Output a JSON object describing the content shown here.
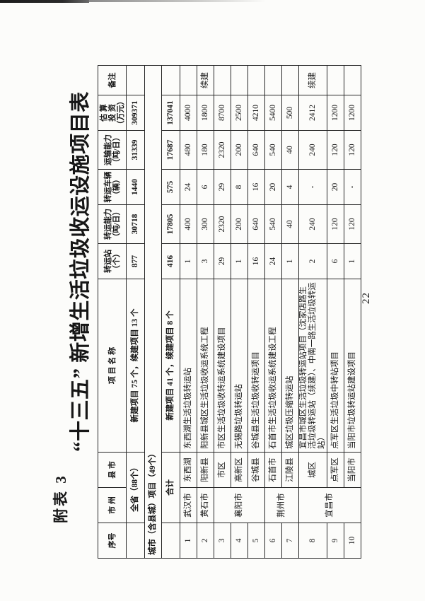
{
  "page": {
    "appendix_label": "附表 3",
    "title": "“十三五” 新增生活垃圾收运设施项目表",
    "page_number": "22"
  },
  "table": {
    "headers": [
      {
        "lines": [
          "序号"
        ]
      },
      {
        "lines": [
          "市 州"
        ]
      },
      {
        "lines": [
          "县 市"
        ]
      },
      {
        "lines": [
          "项 目 名 称"
        ]
      },
      {
        "lines": [
          "转运站",
          "（个）"
        ]
      },
      {
        "lines": [
          "转运能力",
          "（吨/日）"
        ]
      },
      {
        "lines": [
          "转运车辆",
          "（辆）"
        ]
      },
      {
        "lines": [
          "运输能力",
          "（吨/日）"
        ]
      },
      {
        "lines": [
          "估 算",
          "投 资",
          "（万元）"
        ]
      },
      {
        "lines": [
          "备注"
        ]
      }
    ],
    "rows": [
      {
        "cells": [
          {
            "t": ""
          },
          {
            "t": "全省（88个）",
            "cs": 2
          },
          {
            "t": "新建项目 75 个，续建项目 13 个"
          },
          {
            "t": "877"
          },
          {
            "t": "30718"
          },
          {
            "t": "1440"
          },
          {
            "t": "31339"
          },
          {
            "t": "309371"
          },
          {
            "t": ""
          }
        ]
      },
      {
        "cells": [
          {
            "t": "城市（含县城）项目（49个）",
            "cs": 10,
            "cls": "section"
          }
        ]
      },
      {
        "cells": [
          {
            "t": ""
          },
          {
            "t": "合计",
            "cs": 2
          },
          {
            "t": "新建项目 41 个，续建项目 8 个"
          },
          {
            "t": "416"
          },
          {
            "t": "17805"
          },
          {
            "t": "575"
          },
          {
            "t": "17687"
          },
          {
            "t": "137041"
          },
          {
            "t": ""
          }
        ]
      },
      {
        "cells": [
          {
            "t": "1"
          },
          {
            "t": "武汉市"
          },
          {
            "t": "东西湖"
          },
          {
            "t": "东西湖生活垃圾转运站",
            "cls": "name"
          },
          {
            "t": "1"
          },
          {
            "t": "400"
          },
          {
            "t": "24"
          },
          {
            "t": "480"
          },
          {
            "t": "4000"
          },
          {
            "t": ""
          }
        ]
      },
      {
        "cells": [
          {
            "t": "2"
          },
          {
            "t": "黄石市"
          },
          {
            "t": "阳新县"
          },
          {
            "t": "阳新县城区生活垃圾收运系统工程",
            "cls": "name"
          },
          {
            "t": "3"
          },
          {
            "t": "300"
          },
          {
            "t": "6"
          },
          {
            "t": "180"
          },
          {
            "t": "1800"
          },
          {
            "t": "续建"
          }
        ]
      },
      {
        "cells": [
          {
            "t": "3"
          },
          {
            "t": "襄阳市",
            "rs": 3
          },
          {
            "t": "市区"
          },
          {
            "t": "市区生活垃圾收转运系统建设项目",
            "cls": "name"
          },
          {
            "t": "29"
          },
          {
            "t": "2320"
          },
          {
            "t": "29"
          },
          {
            "t": "2320"
          },
          {
            "t": "8700"
          },
          {
            "t": ""
          }
        ]
      },
      {
        "cells": [
          {
            "t": "4"
          },
          {
            "t": "高新区"
          },
          {
            "t": "无锡路垃圾转运站",
            "cls": "name"
          },
          {
            "t": "1"
          },
          {
            "t": "200"
          },
          {
            "t": "8"
          },
          {
            "t": "200"
          },
          {
            "t": "2500"
          },
          {
            "t": ""
          }
        ]
      },
      {
        "cells": [
          {
            "t": "5"
          },
          {
            "t": "谷城县"
          },
          {
            "t": "谷城县生活垃圾收转运项目",
            "cls": "name"
          },
          {
            "t": "16"
          },
          {
            "t": "640"
          },
          {
            "t": "16"
          },
          {
            "t": "640"
          },
          {
            "t": "4210"
          },
          {
            "t": ""
          }
        ]
      },
      {
        "cells": [
          {
            "t": "6"
          },
          {
            "t": "荆州市",
            "rs": 2
          },
          {
            "t": "石首市"
          },
          {
            "t": "石首市生活垃圾收运系统建设工程",
            "cls": "name"
          },
          {
            "t": "24"
          },
          {
            "t": "540"
          },
          {
            "t": "20"
          },
          {
            "t": "540"
          },
          {
            "t": "5400"
          },
          {
            "t": ""
          }
        ]
      },
      {
        "cells": [
          {
            "t": "7"
          },
          {
            "t": "江陵县"
          },
          {
            "t": "城区垃圾压缩转运站",
            "cls": "name"
          },
          {
            "t": "1"
          },
          {
            "t": "40"
          },
          {
            "t": "4"
          },
          {
            "t": "40"
          },
          {
            "t": "500"
          },
          {
            "t": ""
          }
        ]
      },
      {
        "cells": [
          {
            "t": "8"
          },
          {
            "t": "宜昌市",
            "rs": 3
          },
          {
            "t": "城区"
          },
          {
            "t": "宜昌市城区生活垃圾转运站项目（沈家店路生活垃圾转运站（续建）、中南一路生活垃圾转运站）",
            "cls": "name"
          },
          {
            "t": "2"
          },
          {
            "t": "240"
          },
          {
            "t": "-"
          },
          {
            "t": "240"
          },
          {
            "t": "2412"
          },
          {
            "t": "续建"
          }
        ]
      },
      {
        "cells": [
          {
            "t": "9"
          },
          {
            "t": "点军区"
          },
          {
            "t": "点军区生活垃圾中转站项目",
            "cls": "name"
          },
          {
            "t": "6"
          },
          {
            "t": "120"
          },
          {
            "t": "20"
          },
          {
            "t": "120"
          },
          {
            "t": "1200"
          },
          {
            "t": ""
          }
        ]
      },
      {
        "cells": [
          {
            "t": "10"
          },
          {
            "t": "当阳市"
          },
          {
            "t": "当阳市垃圾转运站建设项目",
            "cls": "name"
          },
          {
            "t": "1"
          },
          {
            "t": "120"
          },
          {
            "t": "-"
          },
          {
            "t": "120"
          },
          {
            "t": "1200"
          },
          {
            "t": ""
          }
        ]
      }
    ]
  }
}
